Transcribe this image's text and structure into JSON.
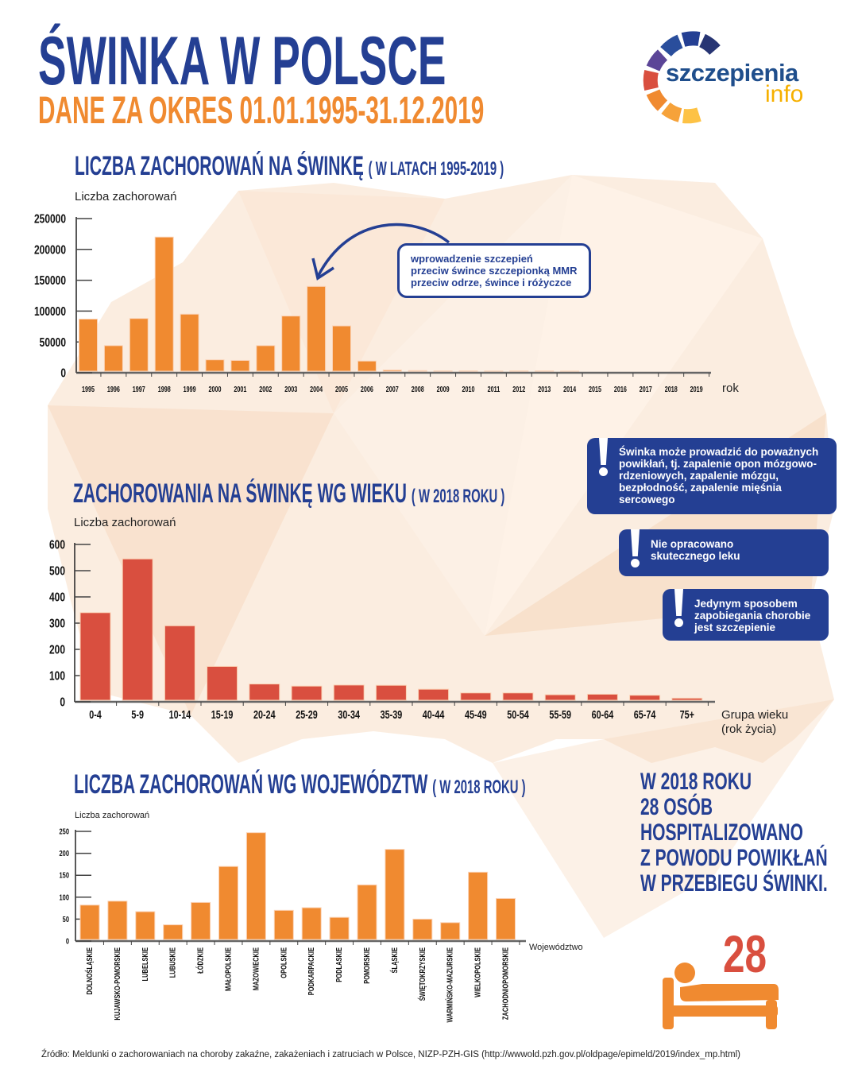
{
  "header": {
    "title": "ŚWINKA W POLSCE",
    "subtitle": "DANE ZA OKRES 01.01.1995-31.12.2019"
  },
  "logo": {
    "word1": "szczepienia",
    "word2": "info"
  },
  "section1": {
    "title": "LICZBA ZACHOROWAŃ NA ŚWINKĘ",
    "note": "( W LATACH 1995-2019 )",
    "ylabel": "Liczba zachorowań",
    "xlabel": "rok"
  },
  "annotation": {
    "line1": "wprowadzenie szczepień",
    "line2": "przeciw śwince szczepionką MMR",
    "line3": "przeciw odrze, śwince i różyczce"
  },
  "section2": {
    "title": "ZACHOROWANIA NA ŚWINKĘ WG WIEKU",
    "note": "( W 2018 ROKU )",
    "ylabel": "Liczba zachorowań",
    "xlabel1": "Grupa wieku",
    "xlabel2": "(rok życia)"
  },
  "section3": {
    "title": "LICZBA ZACHOROWAŃ WG WOJEWÓDZTW",
    "note": "( W 2018 ROKU )",
    "ylabel": "Liczba zachorowań",
    "xlabel": "Województwo"
  },
  "info_boxes": [
    {
      "text": "Świnka może prowadzić do poważnych powikłań, tj. zapalenie opon mózgowo-rdzeniowych, zapalenie mózgu, bezpłodność, zapalenie mięśnia sercowego"
    },
    {
      "text": "Nie opracowano skutecznego leku"
    },
    {
      "text": "Jedynym sposobem zapobiegania chorobie jest szczepienie"
    }
  ],
  "hospital": {
    "lines": [
      "W 2018 ROKU",
      "28 OSÓB",
      "HOSPITALIZOWANO",
      "Z POWODU POWIKŁAŃ",
      "W PRZEBIEGU ŚWINKI."
    ],
    "number": "28"
  },
  "source": "Źródło: Meldunki o zachorowaniach na choroby zakaźne, zakażeniach i zatruciach w Polsce, NIZP-PZH-GIS (http://wwwold.pzh.gov.pl/oldpage/epimeld/2019/index_mp.html)",
  "colors": {
    "blue": "#243f93",
    "orange": "#f08a30",
    "red": "#d94f3f"
  },
  "chart_data": [
    {
      "type": "bar",
      "title": "LICZBA ZACHOROWAŃ NA ŚWINKĘ ( W LATACH 1995-2019 )",
      "xlabel": "rok",
      "ylabel": "Liczba zachorowań",
      "categories": [
        "1995",
        "1996",
        "1997",
        "1998",
        "1999",
        "2000",
        "2001",
        "2002",
        "2003",
        "2004",
        "2005",
        "2006",
        "2007",
        "2008",
        "2009",
        "2010",
        "2011",
        "2012",
        "2013",
        "2014",
        "2015",
        "2016",
        "2017",
        "2018",
        "2019"
      ],
      "values": [
        87000,
        44000,
        88000,
        220000,
        95000,
        21000,
        20000,
        44000,
        92000,
        140000,
        76000,
        19000,
        4500,
        3500,
        3000,
        3000,
        2800,
        3000,
        3000,
        2700,
        2500,
        2300,
        2100,
        2000,
        1800
      ],
      "yticks": [
        "0",
        "50000",
        "100000",
        "150000",
        "200000",
        "250000"
      ],
      "ylim": [
        0,
        250000
      ],
      "color": "#f08a30"
    },
    {
      "type": "bar",
      "title": "ZACHOROWANIA NA ŚWINKĘ WG WIEKU ( W 2018 ROKU )",
      "xlabel": "Grupa wieku (rok życia)",
      "ylabel": "Liczba zachorowań",
      "categories": [
        "0-4",
        "5-9",
        "10-14",
        "15-19",
        "20-24",
        "25-29",
        "30-34",
        "35-39",
        "40-44",
        "45-49",
        "50-54",
        "55-59",
        "60-64",
        "65-74",
        "75+"
      ],
      "values": [
        340,
        545,
        290,
        135,
        68,
        60,
        64,
        63,
        48,
        34,
        34,
        27,
        29,
        25,
        14
      ],
      "yticks": [
        "0",
        "100",
        "200",
        "300",
        "400",
        "500",
        "600"
      ],
      "ylim": [
        0,
        600
      ],
      "color": "#d94f3f"
    },
    {
      "type": "bar",
      "title": "LICZBA ZACHOROWAŃ WG WOJEWÓDZTW ( W 2018 ROKU )",
      "xlabel": "Województwo",
      "ylabel": "Liczba zachorowań",
      "categories": [
        "DOLNOŚLĄSKIE",
        "KUJAWSKO-POMORSKIE",
        "LUBELSKIE",
        "LUBUSKIE",
        "ŁÓDZKIE",
        "MAŁOPOLSKIE",
        "MAZOWIECKIE",
        "OPOLSKIE",
        "PODKARPACKIE",
        "PODLASKIE",
        "POMORSKIE",
        "ŚLĄSKIE",
        "ŚWIĘTOKRZYSKIE",
        "WARMIŃSKO-MAZURSKIE",
        "WIELKOPOLSKIE",
        "ZACHODNIOPOMORSKIE"
      ],
      "values": [
        82,
        91,
        67,
        37,
        88,
        170,
        247,
        70,
        76,
        54,
        128,
        209,
        50,
        42,
        157,
        97
      ],
      "yticks": [
        "0",
        "50",
        "100",
        "150",
        "200",
        "250"
      ],
      "ylim": [
        0,
        250
      ],
      "color": "#f08a30"
    }
  ]
}
